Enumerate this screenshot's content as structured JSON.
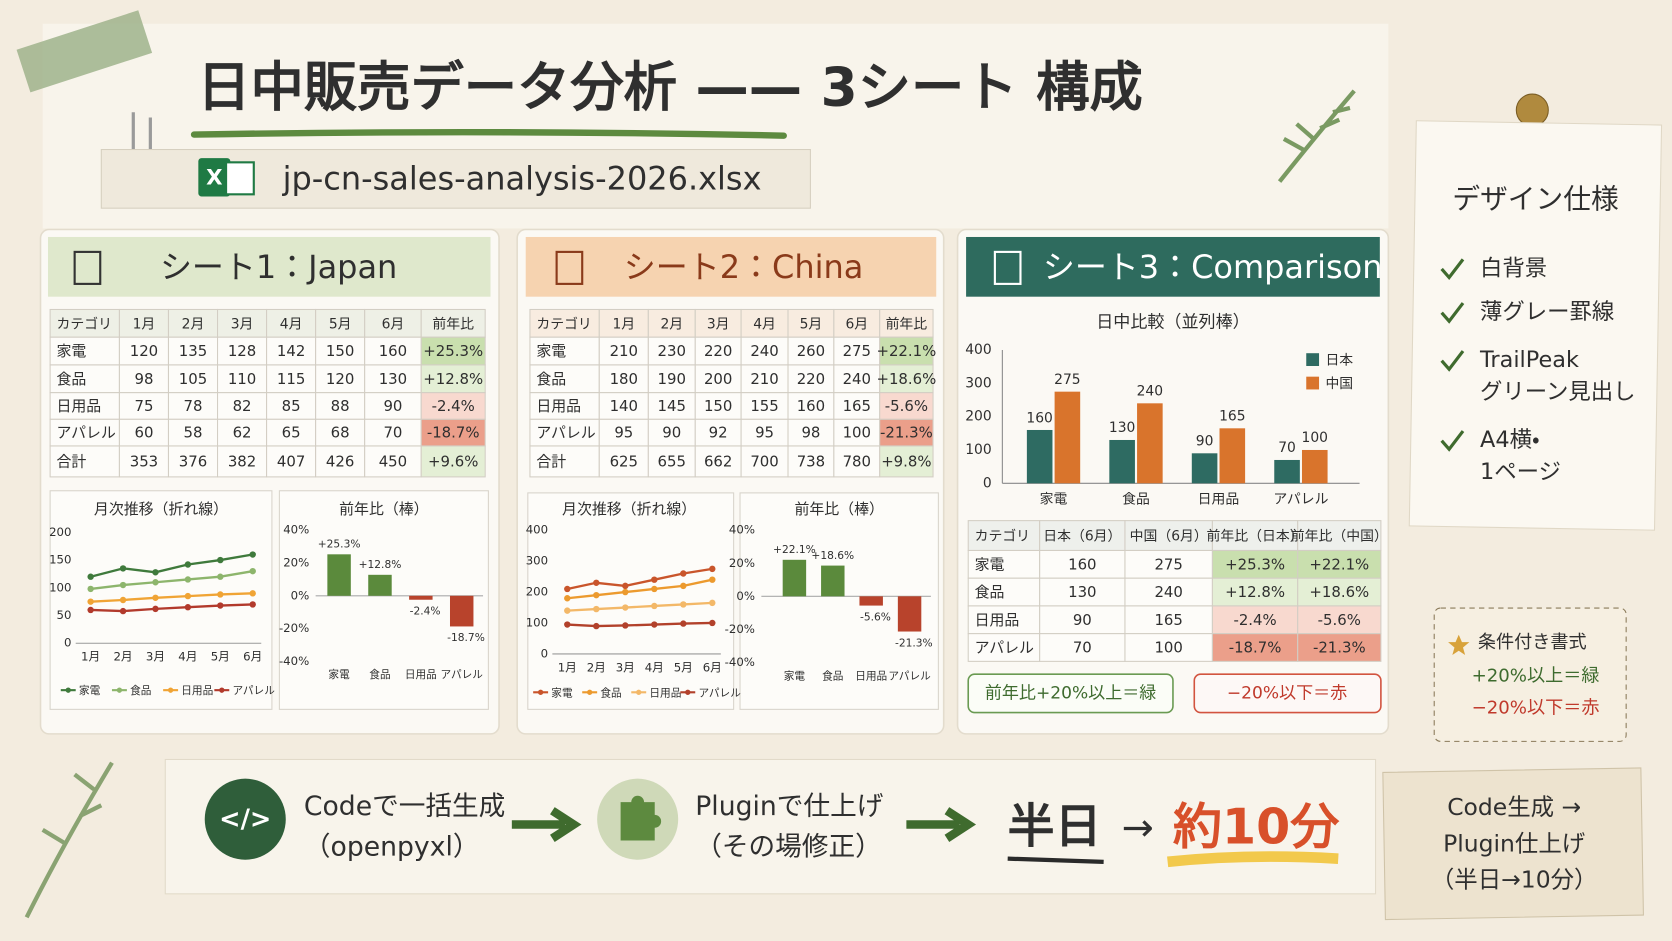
{
  "header": {
    "title": "日中販売データ分析 —— 3シート 構成",
    "file_icon": "X",
    "filename": "jp-cn-sales-analysis-2026.xlsx"
  },
  "sheets": [
    {
      "title": "シート1：Japan",
      "table": {
        "header": [
          "カテゴリ",
          "1月",
          "2月",
          "3月",
          "4月",
          "5月",
          "6月",
          "前年比"
        ],
        "rows": [
          [
            "家電",
            120,
            135,
            128,
            142,
            150,
            160,
            "+25.3%"
          ],
          [
            "食品",
            98,
            105,
            110,
            115,
            120,
            130,
            "+12.8%"
          ],
          [
            "日用品",
            75,
            78,
            82,
            85,
            88,
            90,
            "-2.4%"
          ],
          [
            "アパレル",
            60,
            58,
            62,
            65,
            68,
            70,
            "-18.7%"
          ],
          [
            "合計",
            353,
            376,
            382,
            407,
            426,
            450,
            "+9.6%"
          ]
        ]
      }
    },
    {
      "title": "シート2：China",
      "table": {
        "header": [
          "カテゴリ",
          "1月",
          "2月",
          "3月",
          "4月",
          "5月",
          "6月",
          "前年比"
        ],
        "rows": [
          [
            "家電",
            210,
            230,
            220,
            240,
            260,
            275,
            "+22.1%"
          ],
          [
            "食品",
            180,
            190,
            200,
            210,
            220,
            240,
            "+18.6%"
          ],
          [
            "日用品",
            140,
            145,
            150,
            155,
            160,
            165,
            "-5.6%"
          ],
          [
            "アパレル",
            95,
            90,
            92,
            95,
            98,
            100,
            "-21.3%"
          ],
          [
            "合計",
            625,
            655,
            662,
            700,
            738,
            780,
            "+9.8%"
          ]
        ]
      }
    },
    {
      "title": "シート3：Comparison",
      "table": {
        "header": [
          "カテゴリ",
          "日本（6月）",
          "中国（6月）",
          "前年比（日本）",
          "前年比（中国）"
        ],
        "rows": [
          [
            "家電",
            160,
            275,
            "+25.3%",
            "+22.1%"
          ],
          [
            "食品",
            130,
            240,
            "+12.8%",
            "+18.6%"
          ],
          [
            "日用品",
            90,
            165,
            "-2.4%",
            "-5.6%"
          ],
          [
            "アパレル",
            70,
            100,
            "-18.7%",
            "-21.3%"
          ]
        ]
      },
      "legend": [
        "前年比+20%以上＝緑",
        "−20%以下＝赤"
      ]
    }
  ],
  "chart_data": [
    {
      "type": "line",
      "title": "月次推移（折れ線）",
      "categories": [
        "1月",
        "2月",
        "3月",
        "4月",
        "5月",
        "6月"
      ],
      "series": [
        {
          "name": "家電",
          "color": "#3f7a3c",
          "values": [
            120,
            135,
            128,
            142,
            150,
            160
          ]
        },
        {
          "name": "食品",
          "color": "#8db56c",
          "values": [
            98,
            105,
            110,
            115,
            120,
            130
          ]
        },
        {
          "name": "日用品",
          "color": "#f0a435",
          "values": [
            75,
            78,
            82,
            85,
            88,
            90
          ]
        },
        {
          "name": "アパレル",
          "color": "#b23a2c",
          "values": [
            60,
            58,
            62,
            65,
            68,
            70
          ]
        }
      ],
      "ylim": [
        0,
        200
      ],
      "yticks": [
        0,
        50,
        100,
        150,
        200
      ],
      "legend": "bottom"
    },
    {
      "type": "bar",
      "title": "前年比（棒）",
      "categories": [
        "家電",
        "食品",
        "日用品",
        "アパレル"
      ],
      "values": [
        25.3,
        12.8,
        -2.4,
        -18.7
      ],
      "value_labels": [
        "+25.3%",
        "+12.8%",
        "-2.4%",
        "-18.7%"
      ],
      "colors": [
        "#5b8a3c",
        "#5b8a3c",
        "#b8432c",
        "#b8432c"
      ],
      "ylim": [
        -40,
        40
      ],
      "yticks": [
        {
          "value": -40,
          "label": "-40%"
        },
        {
          "value": -20,
          "label": "-20%"
        },
        {
          "value": 0,
          "label": "0%"
        },
        {
          "value": 20,
          "label": "20%"
        },
        {
          "value": 40,
          "label": "40%"
        }
      ]
    },
    {
      "type": "line",
      "title": "月次推移（折れ線）",
      "categories": [
        "1月",
        "2月",
        "3月",
        "4月",
        "5月",
        "6月"
      ],
      "series": [
        {
          "name": "家電",
          "color": "#c9552b",
          "values": [
            210,
            230,
            220,
            240,
            260,
            275
          ]
        },
        {
          "name": "食品",
          "color": "#ec9a2e",
          "values": [
            180,
            190,
            200,
            210,
            220,
            240
          ]
        },
        {
          "name": "日用品",
          "color": "#f3b868",
          "values": [
            140,
            145,
            150,
            155,
            160,
            165
          ]
        },
        {
          "name": "アパレル",
          "color": "#b2412b",
          "values": [
            95,
            90,
            92,
            95,
            98,
            100
          ]
        }
      ],
      "ylim": [
        0,
        400
      ],
      "yticks": [
        0,
        100,
        200,
        300,
        400
      ],
      "legend": "bottom"
    },
    {
      "type": "bar",
      "title": "前年比（棒）",
      "categories": [
        "家電",
        "食品",
        "日用品",
        "アパレル"
      ],
      "values": [
        22.1,
        18.6,
        -5.6,
        -21.3
      ],
      "value_labels": [
        "+22.1%",
        "+18.6%",
        "-5.6%",
        "-21.3%"
      ],
      "colors": [
        "#5b8a3c",
        "#5b8a3c",
        "#b8432c",
        "#b8432c"
      ],
      "ylim": [
        -40,
        40
      ],
      "yticks": [
        {
          "value": -40,
          "label": "-40%"
        },
        {
          "value": -20,
          "label": "-20%"
        },
        {
          "value": 0,
          "label": "0%"
        },
        {
          "value": 20,
          "label": "20%"
        },
        {
          "value": 40,
          "label": "40%"
        }
      ]
    },
    {
      "type": "grouped_bar",
      "title": "日中比較（並列棒）",
      "categories": [
        "家電",
        "食品",
        "日用品",
        "アパレル"
      ],
      "series": [
        {
          "name": "日本",
          "color": "#2e6b62",
          "values": [
            160,
            130,
            90,
            70
          ]
        },
        {
          "name": "中国",
          "color": "#d9742c",
          "values": [
            275,
            240,
            165,
            100
          ]
        }
      ],
      "ylim": [
        0,
        400
      ],
      "yticks": [
        0,
        100,
        200,
        300,
        400
      ],
      "legend": "upper right"
    }
  ],
  "design": {
    "title": "デザイン仕様",
    "items": [
      [
        "白背景"
      ],
      [
        "薄グレー罫線"
      ],
      [
        "TrailPeak",
        "グリーン見出し"
      ],
      [
        "A4横・",
        "1ページ"
      ]
    ]
  },
  "conditional": {
    "title": "条件付き書式",
    "rules": [
      "+20%以上＝緑",
      "−20%以下＝赤"
    ]
  },
  "workflow": {
    "steps": [
      {
        "icon": "</>",
        "lines": [
          "Codeで一括生成",
          "（openpyxl）"
        ]
      },
      {
        "lines": [
          "Pluginで仕上げ",
          "（その場修正）"
        ]
      }
    ],
    "result": {
      "before": "半日",
      "arrow": "→",
      "after": "約10分"
    }
  },
  "note": [
    "Code生成 →",
    "Plugin仕上げ",
    "（半日→10分）"
  ]
}
